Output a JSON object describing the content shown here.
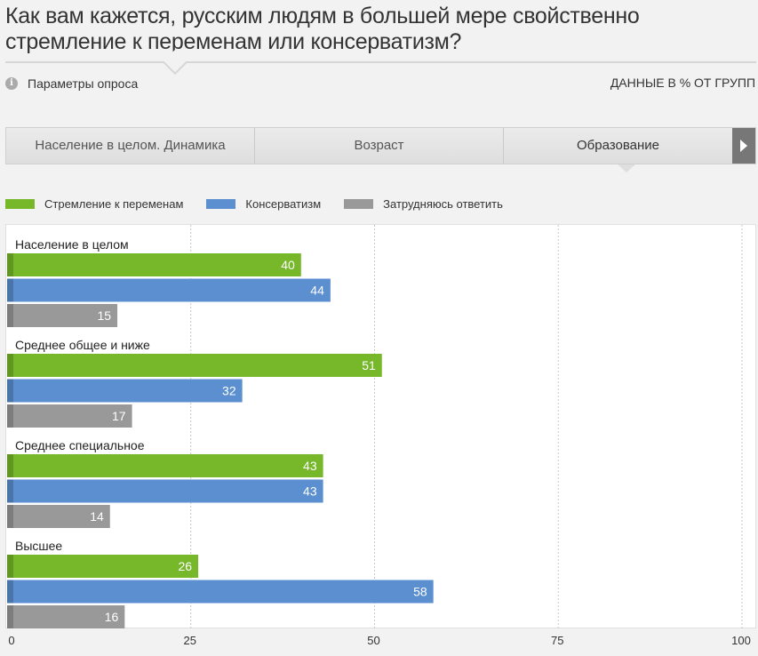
{
  "title": "Как вам кажется, русским людям в большей мере свойственно стремление к переменам или консерватизм?",
  "params_label": "Параметры опроса",
  "units_label": "ДАННЫЕ В % ОТ ГРУПП",
  "tabs": [
    {
      "label": "Население в целом. Динамика"
    },
    {
      "label": "Возраст"
    },
    {
      "label": "Образование"
    }
  ],
  "active_tab": 2,
  "colors": {
    "change": "#76b82a",
    "conservatism": "#5b8fd0",
    "hard": "#999999"
  },
  "chart_data": {
    "type": "bar",
    "orientation": "horizontal",
    "categories": [
      "Население в целом",
      "Среднее общее и ниже",
      "Среднее специальное",
      "Высшее"
    ],
    "series": [
      {
        "name": "Стремление к переменам",
        "values": [
          40,
          51,
          43,
          26
        ]
      },
      {
        "name": "Консерватизм",
        "values": [
          44,
          32,
          43,
          58
        ]
      },
      {
        "name": "Затрудняюсь ответить",
        "values": [
          15,
          17,
          14,
          16
        ]
      }
    ],
    "xlim": [
      0,
      100
    ],
    "xticks": [
      0,
      25,
      50,
      75,
      100
    ],
    "grid": true,
    "legend": "top-left"
  }
}
